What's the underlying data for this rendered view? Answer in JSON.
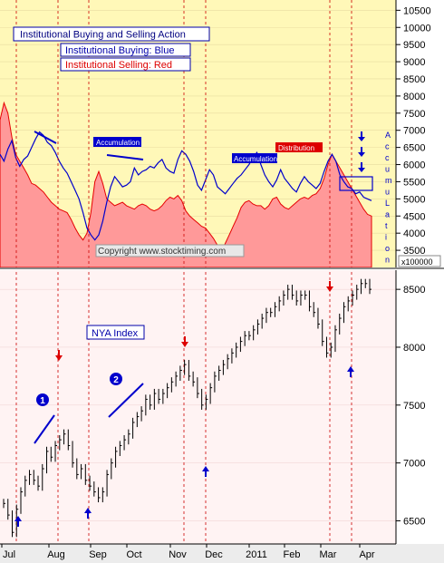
{
  "chart_data": [
    {
      "type": "area",
      "title": "Institutional Buying and Selling Action",
      "legend": [
        "Institutional Buying: Blue",
        "Institutional Selling: Red"
      ],
      "copyright": "Copyright www.stocktiming.com",
      "unit_label": "x100000",
      "side_label": "AccumuLation",
      "ylim": [
        3000,
        10800
      ],
      "yticks": [
        3500,
        4000,
        4500,
        5000,
        5500,
        6000,
        6500,
        7000,
        7500,
        8000,
        8500,
        9000,
        9500,
        10000,
        10500
      ],
      "annotations": [
        {
          "text": "Accumulation",
          "color": "#0000cc"
        },
        {
          "text": "Accumulation",
          "color": "#0000cc"
        },
        {
          "text": "Distribution",
          "color": "#dd0000"
        }
      ],
      "series": [
        {
          "name": "Institutional Buying: Blue",
          "color": "#0000cc",
          "values": [
            6300,
            6100,
            6450,
            6700,
            6200,
            5950,
            6150,
            6250,
            6500,
            6750,
            6950,
            6850,
            6650,
            6550,
            6350,
            6100,
            5900,
            5750,
            5500,
            5250,
            5000,
            4600,
            4150,
            3950,
            3800,
            3950,
            4350,
            4900,
            5350,
            5650,
            5500,
            5350,
            5400,
            5500,
            5900,
            5700,
            5800,
            5850,
            5950,
            5900,
            6050,
            6150,
            5900,
            5800,
            5750,
            6150,
            6400,
            6300,
            6100,
            5800,
            5400,
            5250,
            5550,
            5850,
            5700,
            5350,
            5250,
            5150,
            5300,
            5450,
            5600,
            5700,
            5850,
            6000,
            6200,
            6350,
            6000,
            5700,
            5500,
            5350,
            5550,
            5850,
            5600,
            5450,
            5300,
            5200,
            5450,
            5650,
            5500,
            5400,
            5300,
            5450,
            5800,
            6100,
            6300,
            6100,
            5700,
            5500,
            5350,
            5300,
            5150,
            5200,
            5050,
            5000,
            4950
          ]
        },
        {
          "name": "Institutional Selling: Red",
          "color": "#e60000",
          "values": [
            7300,
            7800,
            7500,
            6800,
            6300,
            6100,
            5900,
            5700,
            5450,
            5400,
            5300,
            5200,
            5050,
            4900,
            4800,
            4700,
            4650,
            4600,
            4400,
            4150,
            3950,
            3800,
            4000,
            4600,
            5500,
            5800,
            5450,
            5000,
            4900,
            4800,
            4850,
            4900,
            4800,
            4750,
            4700,
            4800,
            4850,
            4800,
            4700,
            4650,
            4700,
            4800,
            4950,
            5050,
            5000,
            5100,
            4950,
            4650,
            4500,
            4400,
            4300,
            4200,
            4150,
            4000,
            3850,
            3650,
            3450,
            3700,
            3950,
            4200,
            4450,
            4750,
            4900,
            4950,
            4850,
            4800,
            4800,
            4700,
            4800,
            5000,
            5050,
            4850,
            4750,
            4700,
            4800,
            4900,
            5000,
            5050,
            5000,
            5100,
            5150,
            5300,
            5600,
            6000,
            6300,
            6100,
            5900,
            5700,
            5500,
            5300,
            5100,
            4900,
            4700,
            4550,
            4500
          ]
        }
      ]
    },
    {
      "type": "line",
      "title": "NYA Index",
      "ylim": [
        6300,
        8650
      ],
      "yticks": [
        6500,
        7000,
        7500,
        8000,
        8500
      ],
      "x_labels": [
        "Jul",
        "Aug",
        "Sep",
        "Oct",
        "Nov",
        "Dec",
        "2011",
        "Feb",
        "Mar",
        "Apr"
      ],
      "markers": [
        "1",
        "2"
      ],
      "series": [
        {
          "name": "NYA Index",
          "color": "#000000",
          "values": [
            6650,
            6550,
            6400,
            6600,
            6750,
            6850,
            6900,
            6850,
            6800,
            6950,
            7100,
            7050,
            7150,
            7200,
            7250,
            7150,
            7000,
            6900,
            6950,
            6850,
            6800,
            6750,
            6700,
            6750,
            6900,
            7000,
            7100,
            7150,
            7200,
            7250,
            7350,
            7400,
            7450,
            7550,
            7500,
            7600,
            7550,
            7600,
            7650,
            7700,
            7750,
            7800,
            7850,
            7750,
            7700,
            7600,
            7500,
            7550,
            7650,
            7750,
            7800,
            7850,
            7900,
            7950,
            8000,
            8050,
            8100,
            8100,
            8150,
            8200,
            8250,
            8300,
            8300,
            8350,
            8400,
            8450,
            8500,
            8450,
            8400,
            8450,
            8450,
            8350,
            8300,
            8200,
            8050,
            7950,
            8000,
            8150,
            8250,
            8350,
            8400,
            8450,
            8500,
            8550,
            8550,
            8500
          ]
        }
      ],
      "signals": [
        {
          "direction": "up",
          "color": "#0000cc"
        },
        {
          "direction": "down",
          "color": "#dd0000"
        },
        {
          "direction": "up",
          "color": "#0000cc"
        },
        {
          "direction": "down",
          "color": "#dd0000"
        },
        {
          "direction": "up",
          "color": "#0000cc"
        },
        {
          "direction": "down",
          "color": "#dd0000"
        },
        {
          "direction": "up",
          "color": "#0000cc"
        }
      ]
    }
  ],
  "colors": {
    "top_background": "#fff8b8",
    "bottom_background": "#fff3f3",
    "selling_fill": "#ff9999",
    "buying_line": "#0000cc",
    "signal_line": "#cc0000"
  }
}
